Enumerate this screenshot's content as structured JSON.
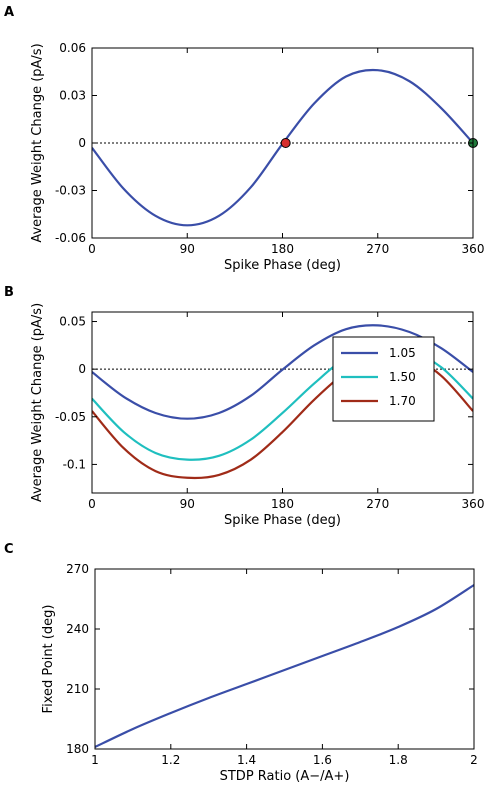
{
  "chart_data": [
    {
      "panel": "A",
      "type": "line",
      "xlabel": "Spike Phase (deg)",
      "ylabel": "Average Weight Change (pA/s)",
      "xlim": [
        0,
        360
      ],
      "ylim": [
        -0.06,
        0.06
      ],
      "xticks": [
        0,
        90,
        180,
        270,
        360
      ],
      "xtick_labels": [
        "0",
        "90",
        "180",
        "270",
        "360"
      ],
      "yticks": [
        0.06,
        0.03,
        0,
        -0.03,
        -0.06
      ],
      "ytick_labels": [
        "0.06",
        "0.03",
        "0",
        "-0.03",
        "-0.06"
      ],
      "zero_line": true,
      "series": [
        {
          "color": "#3a4ea8",
          "x": [
            0,
            30,
            60,
            90,
            120,
            150,
            180,
            210,
            240,
            270,
            300,
            330,
            360
          ],
          "values": [
            -0.003,
            -0.029,
            -0.046,
            -0.052,
            -0.046,
            -0.028,
            -0.0005,
            0.025,
            0.042,
            0.046,
            0.039,
            0.022,
            0
          ]
        }
      ],
      "markers": [
        {
          "x": 183,
          "y": 0,
          "color": "#d62e2e"
        },
        {
          "x": 360,
          "y": 0,
          "color": "#1f7a3a"
        }
      ]
    },
    {
      "panel": "B",
      "type": "line",
      "xlabel": "Spike Phase (deg)",
      "ylabel": "Average Weight Change (pA/s)",
      "xlim": [
        0,
        360
      ],
      "ylim": [
        -0.13,
        0.06
      ],
      "xticks": [
        0,
        90,
        180,
        270,
        360
      ],
      "xtick_labels": [
        "0",
        "90",
        "180",
        "270",
        "360"
      ],
      "yticks": [
        0.05,
        0,
        -0.05,
        -0.1
      ],
      "ytick_labels": [
        "0.05",
        "0",
        "-0.05",
        "-0.1"
      ],
      "zero_line": true,
      "legend_position": "center-right",
      "series": [
        {
          "name": "1.05",
          "color": "#3a4ea8",
          "x": [
            0,
            30,
            60,
            90,
            120,
            150,
            180,
            210,
            240,
            270,
            300,
            330,
            360
          ],
          "values": [
            -0.003,
            -0.029,
            -0.046,
            -0.052,
            -0.046,
            -0.028,
            -0.0005,
            0.025,
            0.042,
            0.046,
            0.039,
            0.022,
            -0.003
          ]
        },
        {
          "name": "1.50",
          "color": "#1fbfbf",
          "x": [
            0,
            30,
            60,
            90,
            120,
            150,
            180,
            210,
            240,
            270,
            300,
            330,
            360
          ],
          "values": [
            -0.031,
            -0.066,
            -0.088,
            -0.095,
            -0.091,
            -0.074,
            -0.046,
            -0.015,
            0.012,
            0.025,
            0.02,
            0.002,
            -0.031
          ]
        },
        {
          "name": "1.70",
          "color": "#a02b18",
          "x": [
            0,
            30,
            60,
            90,
            120,
            150,
            180,
            210,
            240,
            270,
            300,
            330,
            360
          ],
          "values": [
            -0.044,
            -0.083,
            -0.107,
            -0.114,
            -0.111,
            -0.095,
            -0.066,
            -0.032,
            -0.003,
            0.015,
            0.014,
            -0.007,
            -0.044
          ]
        }
      ]
    },
    {
      "panel": "C",
      "type": "line",
      "xlabel": "STDP Ratio (A−/A+)",
      "ylabel": "Fixed Point (deg)",
      "xlim": [
        1,
        2
      ],
      "ylim": [
        180,
        270
      ],
      "xticks": [
        1,
        1.2,
        1.4,
        1.6,
        1.8,
        2
      ],
      "xtick_labels": [
        "1",
        "1.2",
        "1.4",
        "1.6",
        "1.8",
        "2"
      ],
      "yticks": [
        270,
        240,
        210,
        180
      ],
      "ytick_labels": [
        "270",
        "240",
        "210",
        "180"
      ],
      "series": [
        {
          "color": "#3a4ea8",
          "x": [
            1,
            1.1,
            1.2,
            1.3,
            1.4,
            1.5,
            1.6,
            1.7,
            1.8,
            1.9,
            2.0
          ],
          "values": [
            181,
            190,
            198,
            205.5,
            212.5,
            219.5,
            226.5,
            233.5,
            241,
            250,
            262
          ]
        }
      ]
    }
  ],
  "panels": {
    "A": {
      "letter": "A"
    },
    "B": {
      "letter": "B"
    },
    "C": {
      "letter": "C"
    }
  }
}
